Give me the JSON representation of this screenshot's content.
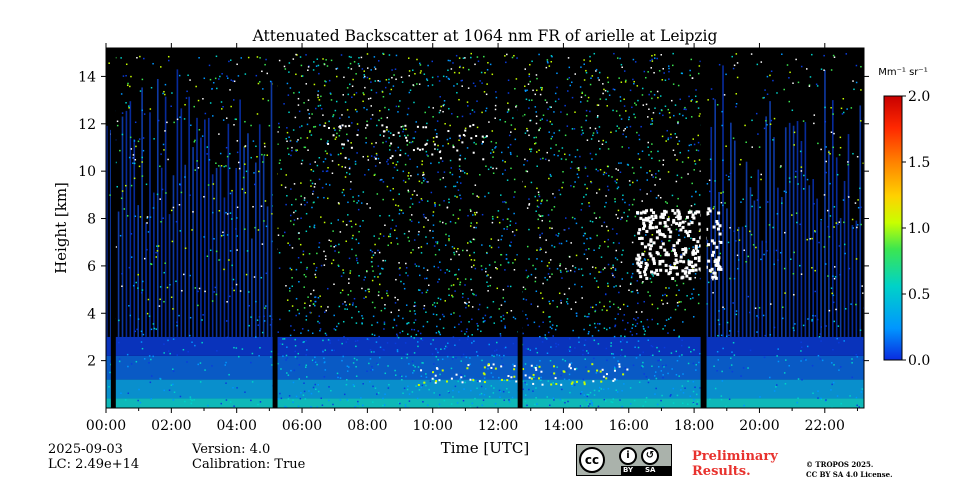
{
  "chart_data": {
    "type": "heatmap",
    "title": "Attenuated Backscatter at 1064 nm FR of arielle at Leipzig",
    "xlabel": "Time [UTC]",
    "ylabel": "Height [km]",
    "x_range": [
      0,
      23.2
    ],
    "y_range": [
      0,
      15.2
    ],
    "x_ticks": [
      0,
      2,
      4,
      6,
      8,
      10,
      12,
      14,
      16,
      18,
      20,
      22
    ],
    "x_tick_labels": [
      "00:00",
      "02:00",
      "04:00",
      "06:00",
      "08:00",
      "10:00",
      "12:00",
      "14:00",
      "16:00",
      "18:00",
      "20:00",
      "22:00"
    ],
    "y_ticks": [
      2,
      4,
      6,
      8,
      10,
      12,
      14
    ],
    "y_tick_labels": [
      "2",
      "4",
      "6",
      "8",
      "10",
      "12",
      "14"
    ],
    "colorbar": {
      "label": "Mm⁻¹ sr⁻¹",
      "min": 0.0,
      "max": 2.0,
      "ticks": [
        0.0,
        0.5,
        1.0,
        1.5,
        2.0
      ],
      "tick_labels": [
        "0.0",
        "0.5",
        "1.0",
        "1.5",
        "2.0"
      ],
      "colors": [
        "#0a2be0",
        "#0096ff",
        "#00d2c8",
        "#3ce650",
        "#c8ff00",
        "#ffd200",
        "#ff8200",
        "#ff2800",
        "#c80000"
      ]
    },
    "gaps_hours": [
      [
        0.15,
        0.3
      ],
      [
        5.1,
        5.25
      ],
      [
        12.6,
        12.75
      ],
      [
        18.2,
        18.38
      ]
    ],
    "features": {
      "boundary_layer_top_km": 3.0,
      "cloud_day_hours": [
        16.2,
        18.8
      ],
      "cloud_day_height_km": [
        5.5,
        8.5
      ],
      "cirrus_height_km": [
        10.5,
        12.0
      ],
      "aerosol_layer_noon_km": 1.8
    }
  },
  "meta": {
    "date": "2025-09-03",
    "lc": "LC: 2.49e+14",
    "version": "Version: 4.0",
    "calibration": "Calibration: True"
  },
  "license": {
    "cc": "cc",
    "by_label": "BY",
    "sa_label": "SA",
    "prelim_line1": "Preliminary",
    "prelim_line2": "Results.",
    "copyright_line1": "© TROPOS 2025.",
    "copyright_line2": "CC BY SA 4.0 License."
  }
}
